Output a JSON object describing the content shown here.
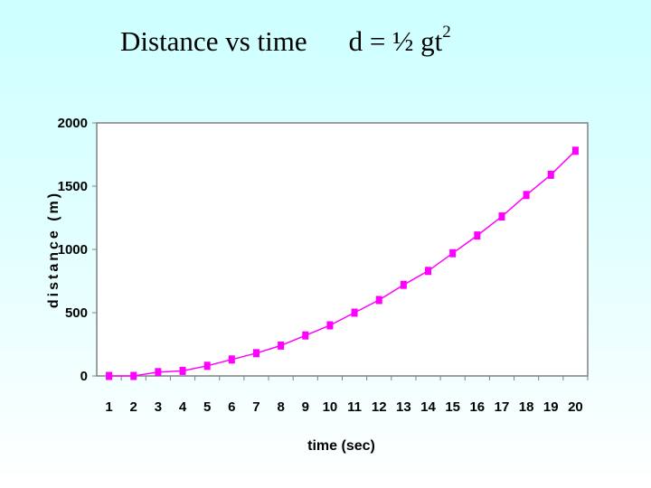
{
  "slide": {
    "title": "Distance vs time",
    "formula_prefix": "d = ½ gt",
    "formula_exponent": "2"
  },
  "colors": {
    "series": "#ff00ff",
    "axis": "#808080",
    "plot_bg": "#ffffff"
  },
  "chart_data": {
    "type": "line",
    "title": "",
    "xlabel": "time (sec)",
    "ylabel": "distance (m)",
    "categories": [
      "1",
      "2",
      "3",
      "4",
      "5",
      "6",
      "7",
      "8",
      "9",
      "10",
      "11",
      "12",
      "13",
      "14",
      "15",
      "16",
      "17",
      "18",
      "19",
      "20"
    ],
    "series": [
      {
        "name": "distance",
        "values": [
          0,
          0,
          30,
          40,
          80,
          130,
          180,
          240,
          320,
          400,
          500,
          600,
          720,
          830,
          970,
          1110,
          1260,
          1430,
          1590,
          1780
        ]
      }
    ],
    "ylim": [
      0,
      2000
    ],
    "yticks": [
      0,
      500,
      1000,
      1500,
      2000
    ],
    "grid": false,
    "legend": "none"
  }
}
